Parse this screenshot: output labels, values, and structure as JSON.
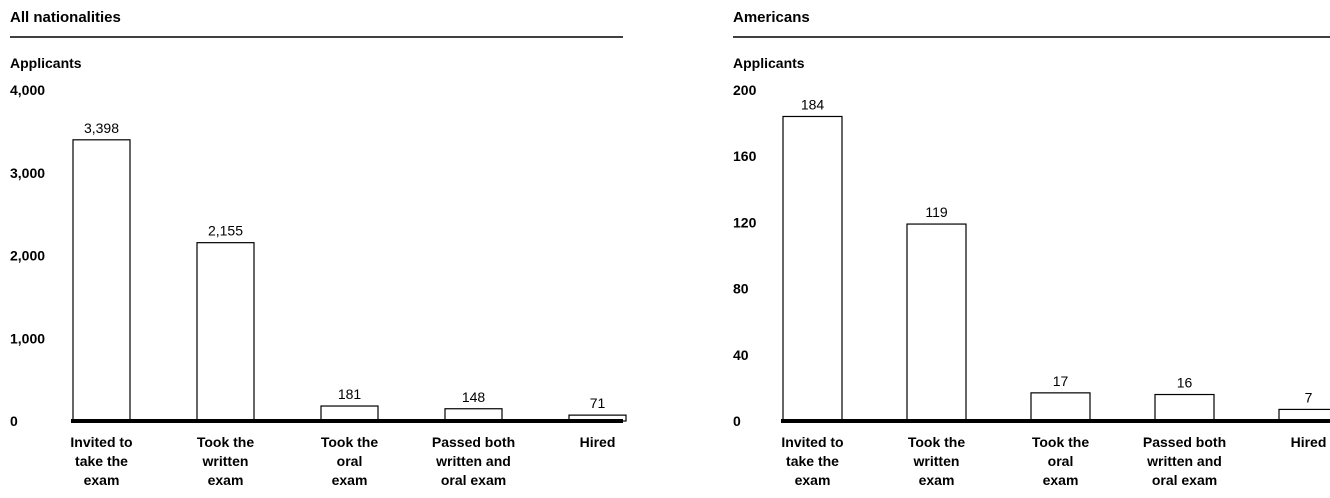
{
  "chart_data": [
    {
      "type": "bar",
      "title": "All nationalities",
      "ylabel": "Applicants",
      "categories": [
        [
          "Invited to",
          "take the",
          "exam"
        ],
        [
          "Took the",
          "written",
          "exam"
        ],
        [
          "Took the",
          "oral",
          "exam"
        ],
        [
          "Passed both",
          "written and",
          "oral exam"
        ],
        [
          "Hired"
        ]
      ],
      "values": [
        3398,
        2155,
        181,
        148,
        71
      ],
      "value_labels": [
        "3,398",
        "2,155",
        "181",
        "148",
        "71"
      ],
      "yticks": [
        0,
        1000,
        2000,
        3000,
        4000
      ],
      "ytick_labels": [
        "0",
        "1,000",
        "2,000",
        "3,000",
        "4,000"
      ],
      "ylim": [
        0,
        4000
      ],
      "grid": false,
      "legend": "none",
      "bar_fill": "#ffffff",
      "bar_stroke": "#000000"
    },
    {
      "type": "bar",
      "title": "Americans",
      "ylabel": "Applicants",
      "categories": [
        [
          "Invited to",
          "take the",
          "exam"
        ],
        [
          "Took the",
          "written",
          "exam"
        ],
        [
          "Took the",
          "oral",
          "exam"
        ],
        [
          "Passed both",
          "written and",
          "oral exam"
        ],
        [
          "Hired"
        ]
      ],
      "values": [
        184,
        119,
        17,
        16,
        7
      ],
      "value_labels": [
        "184",
        "119",
        "17",
        "16",
        "7"
      ],
      "yticks": [
        0,
        40,
        80,
        120,
        160,
        200
      ],
      "ytick_labels": [
        "0",
        "40",
        "80",
        "120",
        "160",
        "200"
      ],
      "ylim": [
        0,
        200
      ],
      "grid": false,
      "legend": "none",
      "bar_fill": "#ffffff",
      "bar_stroke": "#000000"
    }
  ]
}
